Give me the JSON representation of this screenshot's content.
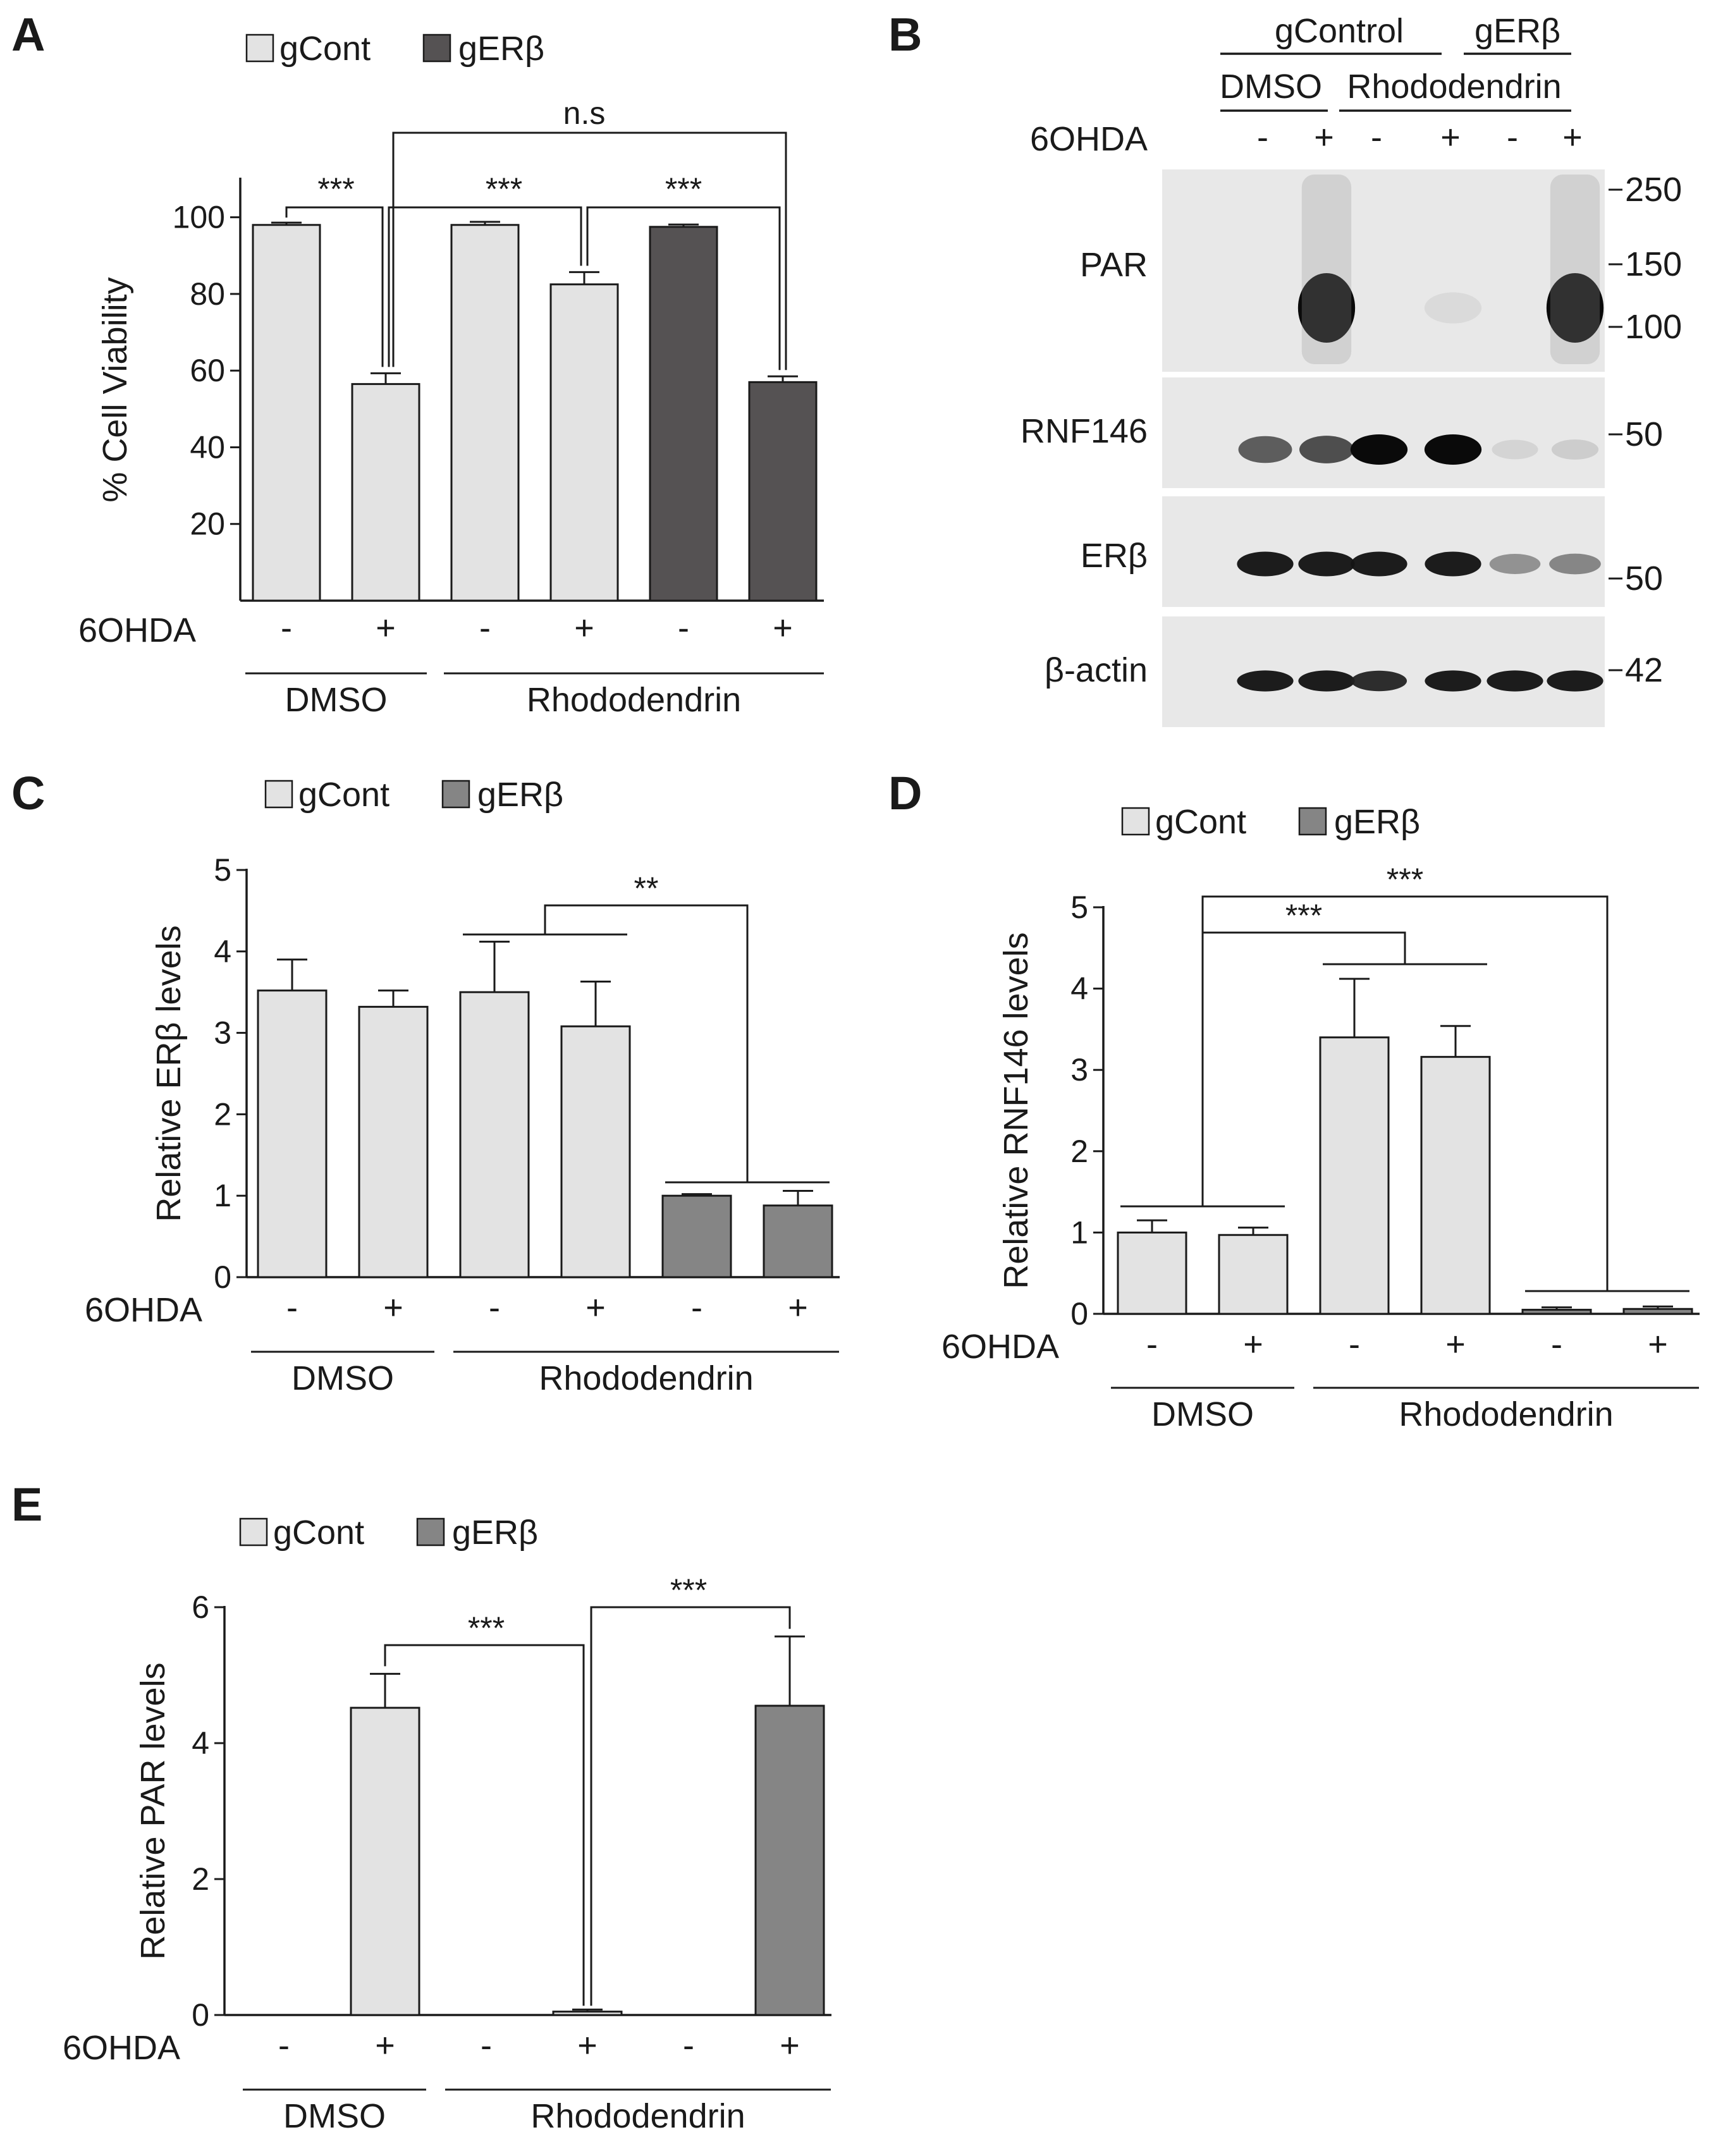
{
  "colors": {
    "gcont": "#e3e3e3",
    "gerb_dark": "#555253",
    "gerb_mid": "#858585",
    "line": "#1a1a1a",
    "blot_bg": "#e8e8e8"
  },
  "conditions": {
    "treatment_label": "6OHDA",
    "signs": [
      "-",
      "+",
      "-",
      "+",
      "-",
      "+"
    ],
    "groups": [
      {
        "label": "DMSO",
        "span": [
          0,
          1
        ]
      },
      {
        "label": "Rhododendrin",
        "span": [
          2,
          5
        ]
      }
    ]
  },
  "legend": {
    "gcont": "gCont",
    "gerb": "gERβ"
  },
  "chart_data": [
    {
      "panel": "A",
      "type": "bar",
      "ylabel": "% Cell Viability",
      "ylim": [
        0,
        110
      ],
      "yticks": [
        20,
        40,
        60,
        80,
        100
      ],
      "values": [
        98,
        56.5,
        98,
        82.5,
        97.5,
        57
      ],
      "errors": [
        0.6,
        2.8,
        0.8,
        3.2,
        0.6,
        1.5
      ],
      "series_colors": [
        "gcont",
        "gcont",
        "gcont",
        "gcont",
        "gerb_dark",
        "gerb_dark"
      ],
      "significance": [
        {
          "from": 0,
          "to": 1,
          "label": "***"
        },
        {
          "from": 2,
          "to": 3,
          "label": "***"
        },
        {
          "from": 3,
          "to": 5,
          "label": "***"
        },
        {
          "from": 1,
          "to": 5,
          "label": "n.s"
        }
      ]
    },
    {
      "panel": "C",
      "type": "bar",
      "ylabel": "Relative ERβ levels",
      "ylim": [
        0,
        5
      ],
      "yticks": [
        0,
        1,
        2,
        3,
        4,
        5
      ],
      "values": [
        3.52,
        3.32,
        3.5,
        3.08,
        1.0,
        0.88
      ],
      "errors": [
        0.38,
        0.2,
        0.62,
        0.55,
        0.02,
        0.18
      ],
      "series_colors": [
        "gcont",
        "gcont",
        "gcont",
        "gcont",
        "gerb_mid",
        "gerb_mid"
      ],
      "significance": [
        {
          "from_group": [
            2,
            3
          ],
          "to_group": [
            4,
            5
          ],
          "label": "**"
        }
      ]
    },
    {
      "panel": "D",
      "type": "bar",
      "ylabel": "Relative RNF146 levels",
      "ylim": [
        0,
        5
      ],
      "yticks": [
        0,
        1,
        2,
        3,
        4,
        5
      ],
      "values": [
        1.0,
        0.97,
        3.4,
        3.16,
        0.05,
        0.06
      ],
      "errors": [
        0.15,
        0.09,
        0.72,
        0.38,
        0.03,
        0.03
      ],
      "series_colors": [
        "gcont",
        "gcont",
        "gcont",
        "gcont",
        "gerb_mid",
        "gerb_mid"
      ],
      "significance": [
        {
          "from_group": [
            0,
            1
          ],
          "to_group": [
            2,
            3
          ],
          "label": "***"
        },
        {
          "from_group": [
            0,
            1
          ],
          "to_group": [
            4,
            5
          ],
          "label": "***"
        }
      ]
    },
    {
      "panel": "E",
      "type": "bar",
      "ylabel": "Relative PAR levels",
      "ylim": [
        0,
        6
      ],
      "yticks": [
        0,
        2,
        4,
        6
      ],
      "values": [
        0.0,
        4.52,
        0.0,
        0.05,
        0.0,
        4.55
      ],
      "errors": [
        0.0,
        0.5,
        0.0,
        0.03,
        0.0,
        1.02
      ],
      "series_colors": [
        "gcont",
        "gcont",
        "gcont",
        "gcont",
        "gerb_mid",
        "gerb_mid"
      ],
      "significance": [
        {
          "from": 1,
          "to": 3,
          "label": "***"
        },
        {
          "from": 3,
          "to": 5,
          "label": "***"
        }
      ]
    }
  ],
  "blot": {
    "panel": "B",
    "header_groups": [
      {
        "label": "gControl"
      },
      {
        "label": "gERβ"
      }
    ],
    "sub_groups": [
      {
        "label": "DMSO"
      },
      {
        "label": "Rhododendrin"
      }
    ],
    "treatment_label": "6OHDA",
    "signs": [
      "-",
      "+",
      "-",
      "+",
      "-",
      "+"
    ],
    "rows": [
      {
        "label": "PAR",
        "markers": [
          "250",
          "150",
          "100"
        ],
        "intensities": [
          0,
          1.0,
          0,
          0.15,
          0,
          1.0
        ]
      },
      {
        "label": "RNF146",
        "markers": [
          "50"
        ],
        "intensities": [
          0.75,
          0.8,
          1.0,
          1.0,
          0.2,
          0.25
        ]
      },
      {
        "label": "ERβ",
        "markers": [
          "50"
        ],
        "intensities": [
          0.95,
          0.95,
          0.95,
          0.95,
          0.55,
          0.6
        ]
      },
      {
        "label": "β-actin",
        "markers": [
          "42"
        ],
        "intensities": [
          0.95,
          0.95,
          0.9,
          0.95,
          0.95,
          0.95
        ]
      }
    ]
  }
}
